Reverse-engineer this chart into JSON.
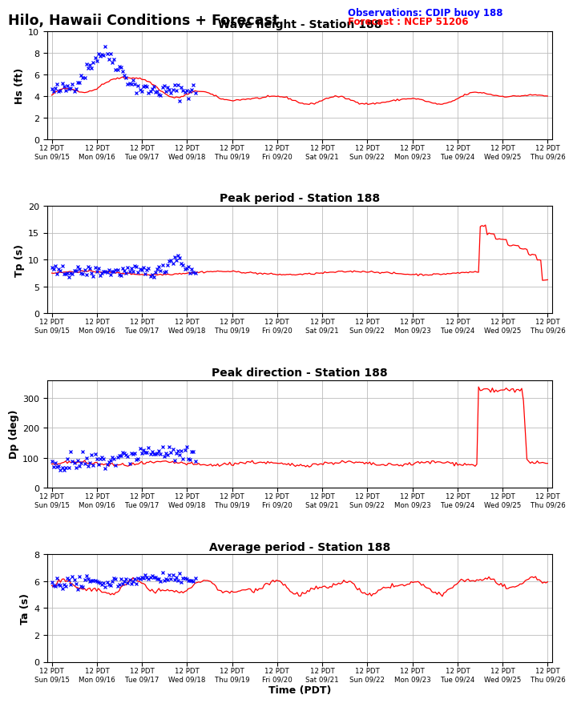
{
  "title": "Hilo, Hawaii Conditions + Forecast",
  "obs_label": "Observations: CDIP buoy 188",
  "fcst_label": "Forecast : NCEP 51206",
  "xlabel": "Time (PDT)",
  "obs_color": "#0000ff",
  "fcst_color": "#ff0000",
  "bg_color": "#ffffff",
  "grid_color": "#bbbbbb",
  "tick_labels_top": [
    "12 PDT",
    "12 PDT",
    "12 PDT",
    "12 PDT",
    "12 PDT",
    "12 PDT",
    "12 PDT",
    "12 PDT",
    "12 PDT",
    "12 PDT",
    "12 PDT",
    "12 PDT"
  ],
  "tick_labels_bot": [
    "Sun 09/15",
    "Mon 09/16",
    "Tue 09/17",
    "Wed 09/18",
    "Thu 09/19",
    "Fri 09/20",
    "Sat 09/21",
    "Sun 09/22",
    "Mon 09/23",
    "Tue 09/24",
    "Wed 09/25",
    "Thu 09/26"
  ],
  "panels": [
    {
      "title": "Wave height - Station 188",
      "ylabel": "Hs (ft)",
      "ylim": [
        0,
        10
      ],
      "yticks": [
        0,
        2,
        4,
        6,
        8,
        10
      ]
    },
    {
      "title": "Peak period - Station 188",
      "ylabel": "Tp (s)",
      "ylim": [
        0,
        20
      ],
      "yticks": [
        0,
        5,
        10,
        15,
        20
      ]
    },
    {
      "title": "Peak direction - Station 188",
      "ylabel": "Dp (deg)",
      "ylim": [
        0,
        360
      ],
      "yticks": [
        0,
        100,
        200,
        300
      ]
    },
    {
      "title": "Average period - Station 188",
      "ylabel": "Ta (s)",
      "ylim": [
        0,
        8
      ],
      "yticks": [
        0,
        2,
        4,
        6,
        8
      ]
    }
  ]
}
